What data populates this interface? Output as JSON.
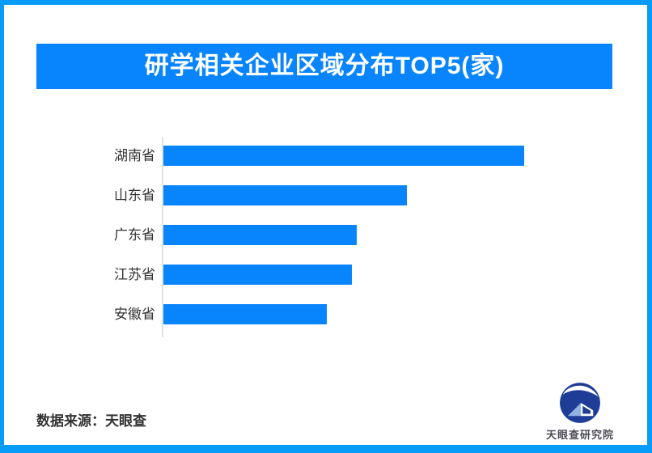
{
  "theme": {
    "accent": "#0884fc",
    "frame": "#069cf7",
    "axis": "#e2e2e2",
    "text": "#333333",
    "logo_navy": "#1e3d96",
    "logo_light": "#8fb3e2"
  },
  "header": {
    "title": "研学相关企业区域分布TOP5(家)",
    "bg": "#0884fc",
    "text_color": "#ffffff"
  },
  "chart_data": {
    "type": "bar",
    "orientation": "horizontal",
    "title": "研学相关企业区域分布TOP5(家)",
    "categories": [
      "湖南省",
      "山东省",
      "广东省",
      "江苏省",
      "安徽省"
    ],
    "values": [
      446,
      301,
      239,
      233,
      202
    ],
    "value_note": "no numeric labels or axis ticks shown in chart; values are measured bar lengths in px",
    "bar_color": "#0884fc",
    "axis_line_color": "#e2e2e2",
    "xlabel": "",
    "ylabel": "",
    "grid": false,
    "legend": false
  },
  "footer": {
    "source_label": "数据来源：天眼查"
  },
  "logo": {
    "text": "天眼查研究院"
  }
}
